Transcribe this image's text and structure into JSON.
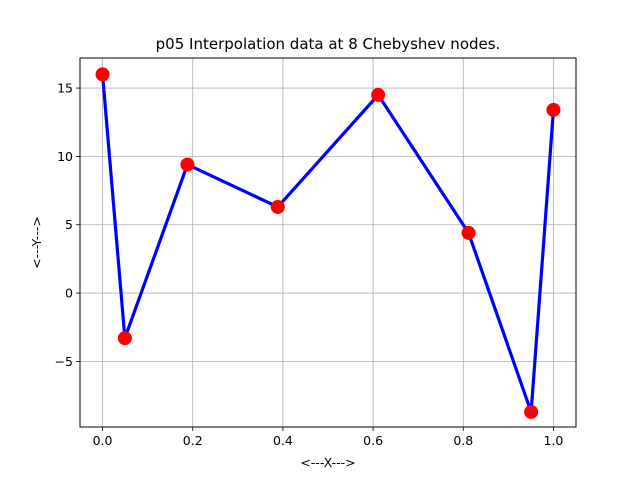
{
  "chart_data": {
    "type": "line",
    "title": "p05 Interpolation data at 8 Chebyshev nodes.",
    "xlabel": "<---X--->",
    "ylabel": "<---Y--->",
    "xlim": [
      -0.05,
      1.05
    ],
    "ylim": [
      -9.8,
      17.2
    ],
    "xticks": [
      0.0,
      0.2,
      0.4,
      0.6,
      0.8,
      1.0
    ],
    "xtick_labels": [
      "0.0",
      "0.2",
      "0.4",
      "0.6",
      "0.8",
      "1.0"
    ],
    "yticks": [
      -5,
      0,
      5,
      10,
      15
    ],
    "ytick_labels": [
      "−5",
      "0",
      "5",
      "10",
      "15"
    ],
    "grid": true,
    "series": [
      {
        "x": [
          0.0,
          0.0495,
          0.1883,
          0.3887,
          0.6113,
          0.8117,
          0.9505,
          1.0
        ],
        "y": [
          16.0,
          -3.3,
          9.4,
          6.3,
          14.5,
          4.4,
          -8.7,
          13.4
        ],
        "line_color": "#0000ff",
        "marker_color": "#ff0000"
      }
    ]
  }
}
